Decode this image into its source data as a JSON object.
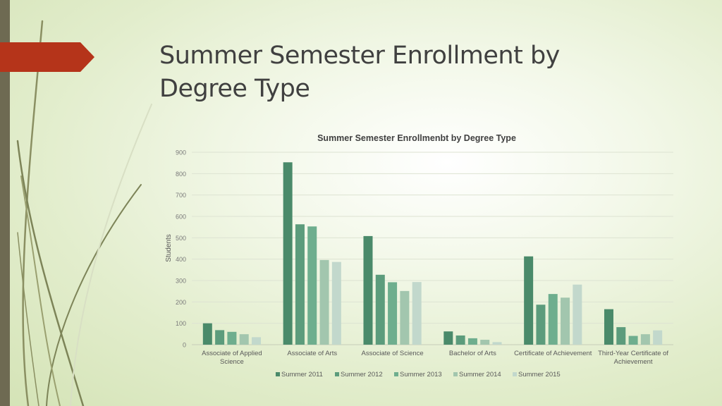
{
  "slide": {
    "title": "Summer Semester Enrollment by Degree Type",
    "accent_color": "#b5341a",
    "bar_color": "#6e6a52"
  },
  "chart_data": {
    "type": "bar",
    "title": "Summer Semester Enrollmenbt by Degree Type",
    "xlabel": "",
    "ylabel": "Students",
    "ylim": [
      0,
      900
    ],
    "yticks": [
      0,
      100,
      200,
      300,
      400,
      500,
      600,
      700,
      800,
      900
    ],
    "grid": true,
    "legend": "bottom",
    "categories": [
      "Associate of Applied Science",
      "Associate of Arts",
      "Associate of Science",
      "Bachelor of Arts",
      "Certificate of Achievement",
      "Third-Year Certificate of Achievement"
    ],
    "series": [
      {
        "name": "Summer 2011",
        "color": "#4a8a6a",
        "values": [
          100,
          853,
          508,
          62,
          413,
          166
        ]
      },
      {
        "name": "Summer 2012",
        "color": "#5c9c7c",
        "values": [
          68,
          563,
          327,
          43,
          187,
          82
        ]
      },
      {
        "name": "Summer 2013",
        "color": "#6eae8e",
        "values": [
          60,
          553,
          292,
          30,
          237,
          41
        ]
      },
      {
        "name": "Summer 2014",
        "color": "#a2c6ae",
        "values": [
          49,
          396,
          251,
          23,
          220,
          49
        ]
      },
      {
        "name": "Summer 2015",
        "color": "#c2d8cc",
        "values": [
          35,
          387,
          293,
          12,
          281,
          67
        ]
      }
    ]
  }
}
